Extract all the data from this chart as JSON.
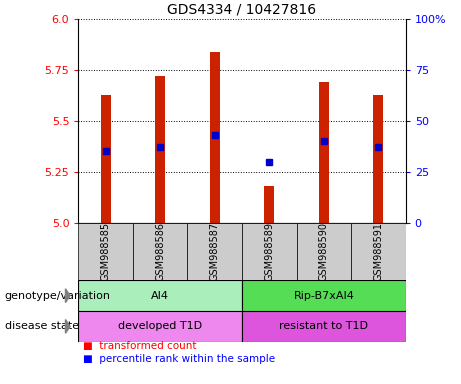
{
  "title": "GDS4334 / 10427816",
  "samples": [
    "GSM988585",
    "GSM988586",
    "GSM988587",
    "GSM988589",
    "GSM988590",
    "GSM988591"
  ],
  "bar_values": [
    5.63,
    5.72,
    5.84,
    5.18,
    5.69,
    5.63
  ],
  "percentile_values": [
    5.35,
    5.37,
    5.43,
    5.3,
    5.4,
    5.37
  ],
  "ylim": [
    5.0,
    6.0
  ],
  "yticks_left": [
    5.0,
    5.25,
    5.5,
    5.75,
    6.0
  ],
  "yticks_right": [
    0,
    25,
    50,
    75,
    100
  ],
  "bar_color": "#cc2200",
  "percentile_color": "#0000cc",
  "bar_width": 0.18,
  "genotype_labels": [
    "AI4",
    "Rip-B7xAI4"
  ],
  "disease_labels": [
    "developed T1D",
    "resistant to T1D"
  ],
  "genotype_colors": [
    "#aaeebb",
    "#55dd55"
  ],
  "disease_colors": [
    "#ee88ee",
    "#dd55dd"
  ],
  "sample_bg_color": "#cccccc",
  "legend_red_label": "transformed count",
  "legend_blue_label": "percentile rank within the sample",
  "left_label_geno": "genotype/variation",
  "left_label_disease": "disease state",
  "title_fontsize": 10,
  "tick_fontsize": 8,
  "label_fontsize": 8,
  "sample_fontsize": 7
}
